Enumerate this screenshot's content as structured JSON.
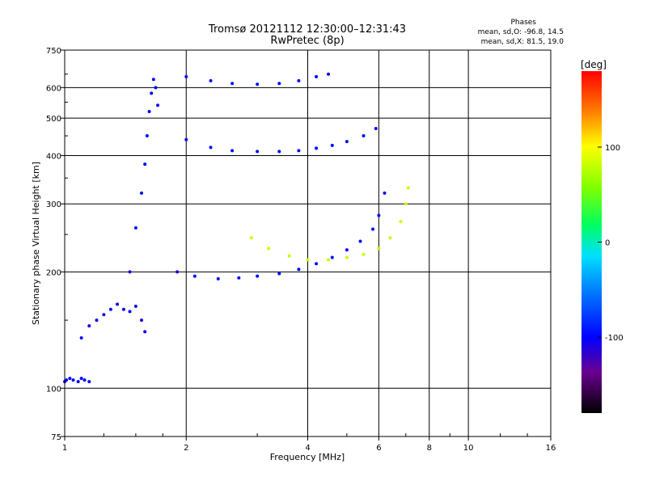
{
  "chart_data": {
    "type": "scatter",
    "title": "Tromsø 20121112 12:30:00–12:31:43",
    "subtitle": "RwPretec (8p)",
    "xlabel": "Frequency [MHz]",
    "ylabel": "Stationary phase Virtual Height [km]",
    "xscale": "log",
    "yscale": "log",
    "xlim": [
      1,
      16
    ],
    "ylim": [
      75,
      750
    ],
    "x_ticks": [
      1,
      2,
      4,
      6,
      8,
      10,
      16
    ],
    "x_tick_labels": [
      "1",
      "2",
      "4",
      "6",
      "8",
      "10",
      "16"
    ],
    "y_ticks": [
      75,
      100,
      200,
      300,
      400,
      500,
      600,
      750
    ],
    "y_tick_labels": [
      "75",
      "100",
      "200",
      "300",
      "400",
      "500",
      "600",
      "750"
    ],
    "grid": true,
    "stats": {
      "heading": "Phases",
      "line_o": "mean, sd,O: -96.8, 14.5",
      "line_x": "mean, sd,X: 81.5, 19.0"
    },
    "colorbar": {
      "unit": "[deg]",
      "range": [
        -180,
        180
      ],
      "tick_values": [
        100,
        0,
        -100
      ],
      "tick_labels": [
        "100",
        "0",
        "-100"
      ]
    },
    "series": [
      {
        "trace": "low-frequency-F",
        "x": [
          1.0,
          1.01,
          1.03,
          1.05,
          1.08,
          1.1,
          1.12,
          1.15
        ],
        "y": [
          104,
          105,
          106,
          105,
          104,
          106,
          105,
          104
        ],
        "phase": -100
      },
      {
        "trace": "E-layer-patch",
        "x": [
          1.1,
          1.15,
          1.2,
          1.25,
          1.3,
          1.35,
          1.4,
          1.45,
          1.5,
          1.55,
          1.58
        ],
        "y": [
          135,
          145,
          150,
          155,
          160,
          165,
          160,
          158,
          163,
          150,
          140
        ],
        "phase": -105
      },
      {
        "trace": "F-spread-column",
        "x": [
          1.45,
          1.5,
          1.55,
          1.58,
          1.6,
          1.62,
          1.64,
          1.66,
          1.68,
          1.7
        ],
        "y": [
          200,
          260,
          320,
          380,
          450,
          520,
          580,
          630,
          600,
          540
        ],
        "phase": -100
      },
      {
        "trace": "F2-O-lower",
        "x": [
          1.9,
          2.1,
          2.4,
          2.7,
          3.0,
          3.4,
          3.8,
          4.2,
          4.6,
          5.0,
          5.4,
          5.8,
          6.0,
          6.2
        ],
        "y": [
          200,
          195,
          192,
          193,
          195,
          198,
          203,
          210,
          218,
          228,
          240,
          258,
          280,
          320
        ],
        "phase": -100
      },
      {
        "trace": "F2-X",
        "x": [
          2.9,
          3.2,
          3.6,
          4.0,
          4.5,
          5.0,
          5.5,
          6.0,
          6.4,
          6.8,
          7.0,
          7.1
        ],
        "y": [
          245,
          230,
          220,
          215,
          215,
          218,
          222,
          230,
          245,
          270,
          300,
          330
        ],
        "phase": 80
      },
      {
        "trace": "multihop-410",
        "x": [
          2.0,
          2.3,
          2.6,
          3.0,
          3.4,
          3.8,
          4.2,
          4.6,
          5.0,
          5.5,
          5.9
        ],
        "y": [
          440,
          420,
          412,
          410,
          410,
          412,
          418,
          425,
          435,
          450,
          470
        ],
        "phase": -100
      },
      {
        "trace": "multihop-620",
        "x": [
          2.0,
          2.3,
          2.6,
          3.0,
          3.4,
          3.8,
          4.2,
          4.5
        ],
        "y": [
          640,
          625,
          615,
          612,
          615,
          625,
          640,
          650
        ],
        "phase": -100
      }
    ]
  }
}
